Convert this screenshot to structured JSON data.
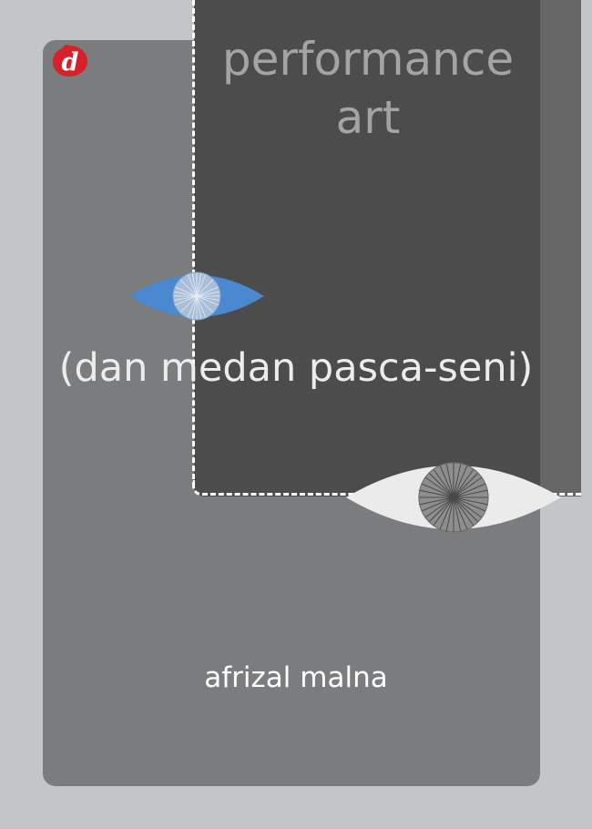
{
  "book": {
    "title_line1": "performance",
    "title_line2": "art",
    "subtitle": "(dan medan pasca-seni)",
    "author": "afrizal malna",
    "publisher_logo_letter": "d"
  },
  "icons": {
    "publisher_logo": "publisher-logo-d-icon",
    "blue_eye": "eye-icon",
    "white_eye": "eye-icon"
  },
  "colors": {
    "background": "#c4c5c7",
    "inner_panel": "#7b7c7e",
    "dark_panel": "#4c4c4c",
    "title_text": "#a3a4a6",
    "subtitle_text": "#ececec",
    "author_text": "#ffffff",
    "logo_red": "#d8202a",
    "blue_eye": "#4a88cf",
    "white_eye": "#ebebeb",
    "iris_gray": "#8e8e8e"
  }
}
